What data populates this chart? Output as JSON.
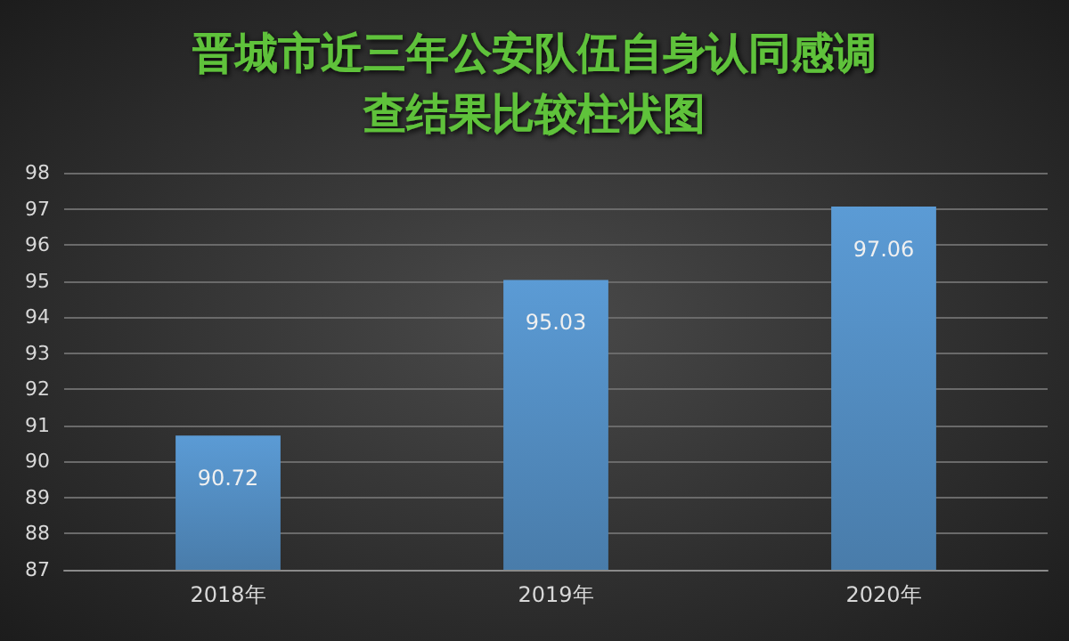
{
  "chart_data": {
    "type": "bar",
    "title": "晋城市近三年公安队伍自身认同感调查结果比较柱状图",
    "categories": [
      "2018年",
      "2019年",
      "2020年"
    ],
    "values": [
      90.72,
      95.03,
      97.06
    ],
    "color": "#5b9bd5",
    "ylim": [
      87,
      98
    ],
    "yticks": [
      87,
      88,
      89,
      90,
      91,
      92,
      93,
      94,
      95,
      96,
      97,
      98
    ],
    "grid": "y",
    "data_labels": true
  }
}
